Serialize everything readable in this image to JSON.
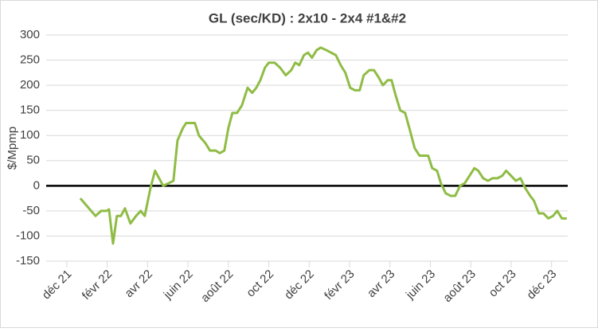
{
  "chart_data": {
    "type": "line",
    "title": "GL (sec/KD) :  2x10 - 2x4 #1&#2",
    "y_label": "$/Mpmp",
    "x": [
      0.67,
      1.42,
      1.7,
      1.97,
      2.09,
      2.29,
      2.48,
      2.68,
      2.88,
      3.15,
      3.43,
      3.66,
      3.86,
      4.14,
      4.37,
      4.57,
      4.77,
      5.04,
      5.28,
      5.48,
      5.75,
      5.91,
      6.34,
      6.54,
      6.86,
      7.09,
      7.37,
      7.57,
      7.8,
      8.0,
      8.2,
      8.43,
      8.67,
      8.95,
      9.18,
      9.38,
      9.58,
      9.81,
      10.0,
      10.29,
      10.56,
      10.84,
      11.11,
      11.31,
      11.51,
      11.74,
      11.94,
      12.14,
      12.37,
      12.57,
      12.85,
      13.08,
      13.32,
      13.56,
      13.79,
      14.03,
      14.27,
      14.5,
      14.7,
      14.98,
      15.21,
      15.45,
      15.65,
      15.88,
      16.08,
      16.28,
      16.51,
      16.75,
      16.99,
      17.22,
      17.46,
      17.69,
      17.89,
      18.09,
      18.33,
      18.52,
      18.76,
      19.0,
      19.23,
      19.47,
      19.7,
      19.94,
      20.18,
      20.37,
      20.61,
      20.85,
      21.08,
      21.32,
      21.56,
      21.75,
      21.99,
      22.23,
      22.46,
      22.7,
      22.94,
      23.13,
      23.37,
      23.6,
      23.84,
      24.07,
      24.28,
      24.51,
      24.75
    ],
    "series": [
      {
        "color": "#8fbc45",
        "values": [
          -25,
          -60,
          -50,
          -50,
          -47,
          -115,
          -60,
          -60,
          -45,
          -75,
          -60,
          -50,
          -60,
          -5,
          30,
          15,
          0,
          5,
          10,
          90,
          115,
          125,
          125,
          100,
          85,
          70,
          70,
          65,
          70,
          115,
          145,
          145,
          160,
          195,
          185,
          195,
          210,
          235,
          245,
          245,
          235,
          220,
          230,
          245,
          240,
          260,
          265,
          255,
          270,
          275,
          270,
          265,
          260,
          240,
          225,
          195,
          190,
          190,
          220,
          230,
          230,
          215,
          200,
          210,
          210,
          180,
          150,
          145,
          110,
          75,
          60,
          60,
          60,
          35,
          30,
          5,
          -15,
          -20,
          -20,
          0,
          5,
          20,
          35,
          30,
          15,
          10,
          15,
          15,
          20,
          30,
          20,
          10,
          15,
          -5,
          -20,
          -30,
          -55,
          -55,
          -65,
          -60,
          -50,
          -65,
          -65
        ]
      }
    ],
    "xlim": [
      -1.02,
      24.8
    ],
    "xticks": [
      {
        "value": 0,
        "label": "déc 21"
      },
      {
        "value": 2,
        "label": "févr 22"
      },
      {
        "value": 4,
        "label": "avr 22"
      },
      {
        "value": 6,
        "label": "juin 22"
      },
      {
        "value": 8,
        "label": "août 22"
      },
      {
        "value": 10,
        "label": "oct 22"
      },
      {
        "value": 12,
        "label": "déc 22"
      },
      {
        "value": 14,
        "label": "févr 23"
      },
      {
        "value": 16,
        "label": "avr 23"
      },
      {
        "value": 18,
        "label": "juin 23"
      },
      {
        "value": 20,
        "label": "août 23"
      },
      {
        "value": 22,
        "label": "oct 23"
      },
      {
        "value": 24,
        "label": "déc 23"
      }
    ],
    "ylim": [
      -150,
      300
    ],
    "yticks": [
      -150,
      -100,
      -50,
      0,
      50,
      100,
      150,
      200,
      250,
      300
    ],
    "grid": true
  }
}
